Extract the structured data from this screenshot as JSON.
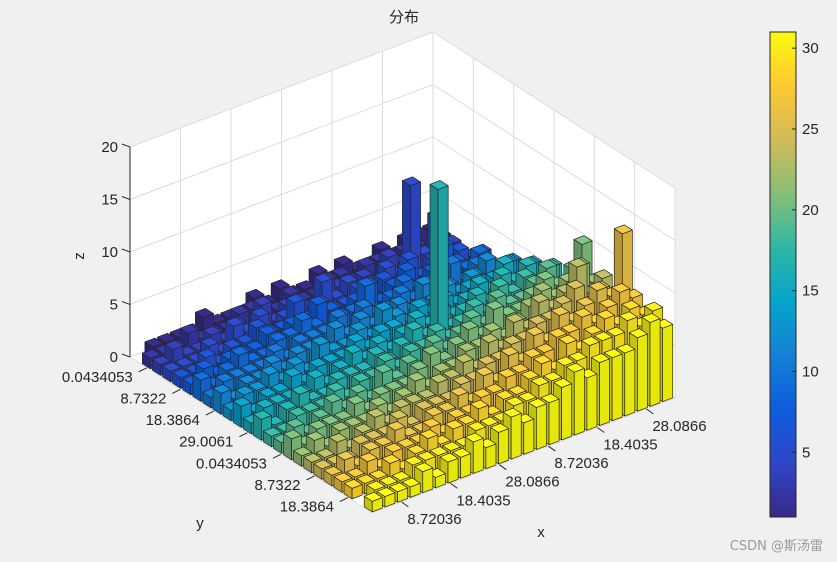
{
  "watermark": "CSDN @斯汤雷",
  "colors": {
    "figure_bg": "#f0f0f0",
    "axes_bg": "#ffffff",
    "grid": "#dcdcdc",
    "edge": "#262626",
    "parula": [
      "#352a87",
      "#3145c8",
      "#0f5cdd",
      "#1481d6",
      "#06a4ca",
      "#2eb7a4",
      "#87bf77",
      "#d1bb59",
      "#fec832",
      "#f9fb0e"
    ]
  },
  "chart_data": {
    "type": "bar3",
    "title": "分布",
    "xlabel": "x",
    "ylabel": "y",
    "zlabel": "z",
    "zlim": [
      0,
      20
    ],
    "z_ticks": [
      "0",
      "5",
      "10",
      "15",
      "20"
    ],
    "x_tick_labels": [
      "8.72036",
      "18.4035",
      "28.0866",
      "8.72036",
      "18.4035",
      "28.0866"
    ],
    "y_tick_labels": [
      "0.0434053",
      "8.7322",
      "18.3864",
      "29.0061",
      "0.0434053",
      "8.7322",
      "18.3864"
    ],
    "colorbar": {
      "limits": [
        1,
        31
      ],
      "ticks": [
        "5",
        "10",
        "15",
        "20",
        "25",
        "30"
      ]
    },
    "grid_size": [
      24,
      24
    ],
    "color_by": "x index (parula colormap, 1..31)",
    "notable_bars": [
      {
        "desc": "tallest teal bar near back center",
        "height": 17.5
      },
      {
        "desc": "tall blue bar at left",
        "height": 10
      },
      {
        "desc": "blue bar at left",
        "height": 6
      },
      {
        "desc": "yellow bar near back",
        "height": 13.5
      }
    ],
    "heights": [
      [
        2,
        2,
        2,
        1,
        2,
        1,
        1,
        2,
        1,
        2,
        1,
        1,
        2,
        1,
        2,
        1,
        1,
        1,
        2,
        1,
        1,
        1,
        1,
        0
      ],
      [
        2,
        1,
        2,
        2,
        1,
        2,
        2,
        1,
        2,
        2,
        1,
        1,
        2,
        1,
        1,
        2,
        2,
        1,
        1,
        1,
        2,
        1,
        1,
        1
      ],
      [
        2,
        1,
        1,
        2,
        2,
        3,
        1,
        2,
        1,
        2,
        3,
        1,
        1,
        2,
        1,
        3,
        1,
        2,
        1,
        2,
        1,
        1,
        2,
        1
      ],
      [
        1,
        2,
        6,
        3,
        10,
        2,
        3,
        1,
        2,
        3,
        2,
        4,
        2,
        3,
        2,
        1,
        3,
        2,
        3,
        1,
        2,
        1,
        1,
        1
      ],
      [
        2,
        3,
        2,
        3,
        2,
        4,
        2,
        3,
        2,
        3,
        2,
        2,
        3,
        2,
        4,
        2,
        2,
        3,
        2,
        2,
        1,
        2,
        1,
        1
      ],
      [
        3,
        2,
        3,
        5,
        3,
        2,
        4,
        3,
        2,
        4,
        3,
        2,
        3,
        4,
        2,
        3,
        2,
        3,
        2,
        2,
        2,
        1,
        2,
        1
      ],
      [
        2,
        4,
        3,
        3,
        4,
        3,
        3,
        4,
        3,
        2,
        5,
        3,
        3,
        2,
        3,
        4,
        3,
        3,
        2,
        2,
        3,
        2,
        1,
        2
      ],
      [
        3,
        3,
        4,
        3,
        5,
        3,
        4,
        3,
        4,
        3,
        3,
        4,
        2,
        4,
        3,
        3,
        3,
        2,
        3,
        2,
        2,
        2,
        2,
        1
      ],
      [
        4,
        3,
        5,
        4,
        3,
        4,
        3,
        5,
        3,
        4,
        3,
        3,
        4,
        3,
        4,
        2,
        3,
        3,
        2,
        3,
        2,
        2,
        1,
        2
      ],
      [
        3,
        5,
        4,
        4,
        5,
        4,
        5,
        4,
        4,
        3,
        4,
        5,
        3,
        4,
        3,
        3,
        4,
        2,
        3,
        2,
        3,
        2,
        2,
        1
      ],
      [
        5,
        4,
        6,
        5,
        4,
        5,
        4,
        5,
        4,
        5,
        3,
        4,
        4,
        3,
        4,
        3,
        3,
        3,
        2,
        3,
        2,
        2,
        1,
        2
      ],
      [
        4,
        6,
        5,
        7,
        5,
        6,
        5,
        4,
        5,
        4,
        5,
        4,
        3,
        4,
        3,
        4,
        3,
        2,
        3,
        2,
        2,
        2,
        2,
        1
      ],
      [
        6,
        5,
        7,
        6,
        7,
        5,
        6,
        5,
        4,
        17.5,
        4,
        5,
        4,
        3,
        4,
        3,
        3,
        3,
        2,
        2,
        3,
        2,
        1,
        2
      ],
      [
        5,
        7,
        6,
        7,
        6,
        7,
        5,
        6,
        5,
        4,
        5,
        4,
        4,
        3,
        4,
        3,
        3,
        2,
        3,
        2,
        2,
        2,
        1,
        1
      ],
      [
        7,
        6,
        8,
        7,
        6,
        6,
        7,
        5,
        6,
        5,
        4,
        5,
        3,
        4,
        3,
        4,
        2,
        3,
        2,
        3,
        2,
        1,
        2,
        1
      ],
      [
        10,
        7,
        7,
        8,
        7,
        6,
        6,
        7,
        5,
        6,
        5,
        4,
        5,
        4,
        3,
        3,
        3,
        2,
        3,
        2,
        2,
        2,
        1,
        2
      ],
      [
        7,
        9,
        8,
        7,
        8,
        7,
        6,
        5,
        6,
        5,
        5,
        4,
        4,
        3,
        4,
        3,
        2,
        3,
        2,
        2,
        2,
        1,
        2,
        1
      ],
      [
        8,
        7,
        10,
        8,
        7,
        8,
        6,
        7,
        5,
        6,
        4,
        5,
        4,
        4,
        3,
        3,
        3,
        2,
        3,
        2,
        1,
        2,
        1,
        1
      ],
      [
        7,
        8,
        7,
        9,
        8,
        7,
        7,
        6,
        6,
        5,
        5,
        4,
        4,
        3,
        3,
        3,
        2,
        3,
        2,
        2,
        2,
        1,
        1,
        1
      ],
      [
        13.5,
        8,
        9,
        8,
        7,
        8,
        6,
        7,
        5,
        6,
        4,
        5,
        3,
        4,
        3,
        3,
        2,
        2,
        3,
        2,
        2,
        1,
        2,
        1
      ],
      [
        8,
        9,
        8,
        7,
        8,
        7,
        7,
        6,
        6,
        5,
        5,
        4,
        4,
        3,
        3,
        2,
        3,
        2,
        2,
        2,
        1,
        2,
        1,
        1
      ],
      [
        7,
        8,
        7,
        8,
        7,
        6,
        7,
        5,
        6,
        5,
        4,
        4,
        3,
        4,
        3,
        3,
        2,
        3,
        2,
        1,
        2,
        1,
        1,
        1
      ],
      [
        8,
        7,
        8,
        7,
        7,
        7,
        6,
        6,
        5,
        5,
        4,
        4,
        3,
        3,
        3,
        2,
        2,
        2,
        2,
        2,
        1,
        1,
        1,
        0
      ],
      [
        7,
        8,
        7,
        6,
        6,
        6,
        5,
        6,
        5,
        4,
        4,
        3,
        4,
        3,
        2,
        3,
        2,
        2,
        1,
        2,
        1,
        1,
        1,
        1
      ]
    ]
  }
}
